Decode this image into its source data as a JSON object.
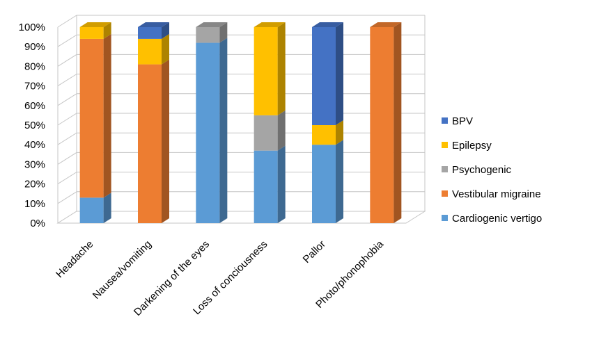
{
  "chart_data": {
    "type": "bar",
    "stacked": true,
    "percent": true,
    "three_d": true,
    "title": "",
    "xlabel": "",
    "ylabel": "",
    "ylim": [
      0,
      100
    ],
    "yticks": [
      "0%",
      "10%",
      "20%",
      "30%",
      "40%",
      "50%",
      "60%",
      "70%",
      "80%",
      "90%",
      "100%"
    ],
    "grid": true,
    "legend_position": "right",
    "categories": [
      "Headache",
      "Nausea/vomiting",
      "Darkening of the eyes",
      "Loss of conciousness",
      "Pallor",
      "Photo/phonophobia"
    ],
    "series": [
      {
        "name": "Cardiogenic vertigo",
        "color": "#5B9BD5",
        "values": [
          13,
          0,
          92,
          37,
          40,
          0
        ]
      },
      {
        "name": "Vestibular migraine",
        "color": "#ED7D31",
        "values": [
          81,
          81,
          0,
          0,
          0,
          100
        ]
      },
      {
        "name": "Psychogenic",
        "color": "#A5A5A5",
        "values": [
          0,
          0,
          8,
          18,
          0,
          0
        ]
      },
      {
        "name": "Epilepsy",
        "color": "#FFC000",
        "values": [
          6,
          13,
          0,
          45,
          10,
          0
        ]
      },
      {
        "name": "BPV",
        "color": "#4472C4",
        "values": [
          0,
          6,
          0,
          0,
          50,
          0
        ]
      }
    ]
  }
}
